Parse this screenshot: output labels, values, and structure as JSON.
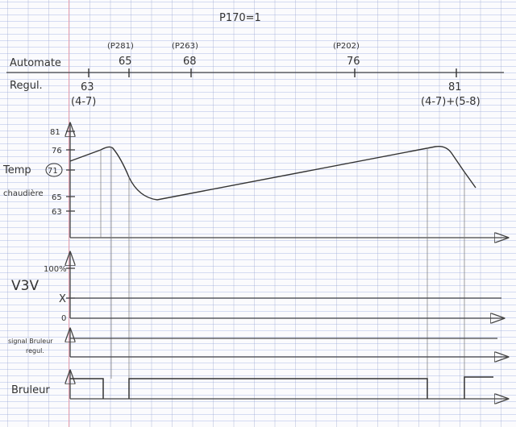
{
  "header": {
    "parameter": "P170=1"
  },
  "timeline": {
    "label_top": "Automate",
    "label_bottom": "Regul.",
    "ticks_top": [
      {
        "param": "(P281)",
        "value": "65"
      },
      {
        "param": "(P263)",
        "value": "68"
      },
      {
        "param": "(P202)",
        "value": "76"
      }
    ],
    "ticks_bottom": [
      {
        "value": "63",
        "note": "(4-7)"
      },
      {
        "value": "81",
        "note": "(4-7)+(5-8)"
      }
    ]
  },
  "temp_chart": {
    "label_line1": "Temp",
    "label_circled": "71",
    "label_line2": "chaudière",
    "y_ticks": [
      "81",
      "76",
      "65",
      "63"
    ]
  },
  "v3v_chart": {
    "label": "V3V",
    "y_ticks": [
      "100%",
      "X",
      "0"
    ]
  },
  "signal_chart": {
    "label_line1": "signal Bruleur",
    "label_line2": "regul."
  },
  "burner_chart": {
    "label": "Bruleur"
  },
  "colors": {
    "ink": "#333333",
    "grid": "#a0aad0",
    "margin": "#e8a0b0"
  }
}
